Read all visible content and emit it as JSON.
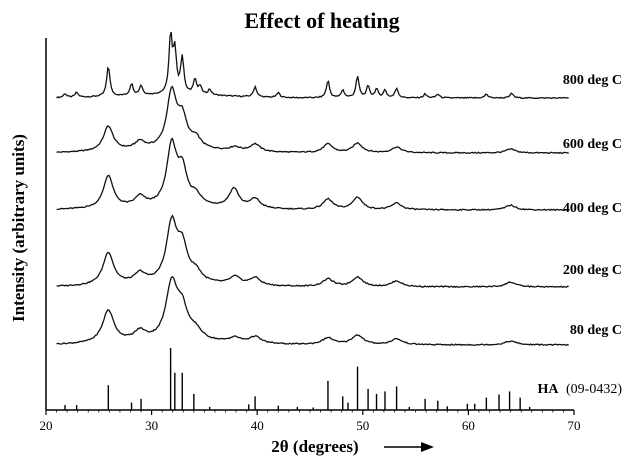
{
  "chart_data": {
    "type": "line",
    "title": "Effect of heating",
    "xlabel": "2θ (degrees)",
    "ylabel": "Intensity (arbitrary units)",
    "xlim": [
      20,
      70
    ],
    "xticks": [
      20,
      30,
      40,
      50,
      60,
      70
    ],
    "grid": false,
    "legend": "inline-right",
    "series": [
      {
        "name": "800 deg C",
        "peaks": [
          [
            21.8,
            0.04
          ],
          [
            22.9,
            0.05
          ],
          [
            25.9,
            0.32
          ],
          [
            28.1,
            0.12
          ],
          [
            29.0,
            0.1
          ],
          [
            31.8,
            0.6
          ],
          [
            32.2,
            0.44
          ],
          [
            32.9,
            0.38
          ],
          [
            34.1,
            0.16
          ],
          [
            34.6,
            0.08
          ],
          [
            35.5,
            0.06
          ],
          [
            39.8,
            0.11
          ],
          [
            42.0,
            0.05
          ],
          [
            46.7,
            0.18
          ],
          [
            48.1,
            0.08
          ],
          [
            49.5,
            0.22
          ],
          [
            50.5,
            0.12
          ],
          [
            51.3,
            0.09
          ],
          [
            52.1,
            0.08
          ],
          [
            53.2,
            0.1
          ],
          [
            55.9,
            0.04
          ],
          [
            57.1,
            0.04
          ],
          [
            61.7,
            0.04
          ],
          [
            64.1,
            0.05
          ]
        ],
        "peak_width": 0.18
      },
      {
        "name": "600 deg C",
        "peaks": [
          [
            25.9,
            0.26
          ],
          [
            28.9,
            0.08
          ],
          [
            31.9,
            0.58
          ],
          [
            32.9,
            0.3
          ],
          [
            34.2,
            0.1
          ],
          [
            37.9,
            0.04
          ],
          [
            39.8,
            0.08
          ],
          [
            46.7,
            0.09
          ],
          [
            49.5,
            0.1
          ],
          [
            53.2,
            0.06
          ],
          [
            64.0,
            0.04
          ]
        ],
        "peak_width": 0.55
      },
      {
        "name": "400 deg C",
        "peaks": [
          [
            25.9,
            0.34
          ],
          [
            28.9,
            0.1
          ],
          [
            31.9,
            0.62
          ],
          [
            32.9,
            0.35
          ],
          [
            34.2,
            0.1
          ],
          [
            37.8,
            0.2
          ],
          [
            39.8,
            0.1
          ],
          [
            46.7,
            0.11
          ],
          [
            49.5,
            0.13
          ],
          [
            53.2,
            0.07
          ],
          [
            64.0,
            0.05
          ]
        ],
        "peak_width": 0.55
      },
      {
        "name": "200 deg C",
        "peaks": [
          [
            25.9,
            0.34
          ],
          [
            28.9,
            0.1
          ],
          [
            31.9,
            0.6
          ],
          [
            32.9,
            0.35
          ],
          [
            34.2,
            0.1
          ],
          [
            37.9,
            0.08
          ],
          [
            39.8,
            0.08
          ],
          [
            46.7,
            0.08
          ],
          [
            49.5,
            0.1
          ],
          [
            53.2,
            0.06
          ],
          [
            64.0,
            0.05
          ]
        ],
        "peak_width": 0.6
      },
      {
        "name": "80 deg C",
        "peaks": [
          [
            25.9,
            0.34
          ],
          [
            28.9,
            0.1
          ],
          [
            31.9,
            0.58
          ],
          [
            32.9,
            0.3
          ],
          [
            34.2,
            0.09
          ],
          [
            37.9,
            0.05
          ],
          [
            39.8,
            0.07
          ],
          [
            46.7,
            0.07
          ],
          [
            49.5,
            0.1
          ],
          [
            53.2,
            0.06
          ],
          [
            64.0,
            0.04
          ]
        ],
        "peak_width": 0.65
      }
    ],
    "reference": {
      "name": "HA",
      "card": "(09-0432)",
      "lines": [
        [
          21.8,
          0.08
        ],
        [
          22.9,
          0.08
        ],
        [
          25.9,
          0.4
        ],
        [
          28.1,
          0.12
        ],
        [
          29.0,
          0.18
        ],
        [
          31.8,
          1.0
        ],
        [
          32.2,
          0.6
        ],
        [
          32.9,
          0.6
        ],
        [
          34.0,
          0.26
        ],
        [
          35.5,
          0.05
        ],
        [
          39.2,
          0.09
        ],
        [
          39.8,
          0.22
        ],
        [
          42.0,
          0.07
        ],
        [
          43.8,
          0.05
        ],
        [
          45.3,
          0.04
        ],
        [
          46.7,
          0.47
        ],
        [
          48.1,
          0.22
        ],
        [
          48.6,
          0.12
        ],
        [
          49.5,
          0.7
        ],
        [
          50.5,
          0.34
        ],
        [
          51.3,
          0.26
        ],
        [
          52.1,
          0.3
        ],
        [
          53.2,
          0.38
        ],
        [
          54.4,
          0.05
        ],
        [
          55.9,
          0.18
        ],
        [
          57.1,
          0.15
        ],
        [
          58.0,
          0.06
        ],
        [
          59.9,
          0.1
        ],
        [
          60.6,
          0.1
        ],
        [
          61.7,
          0.2
        ],
        [
          62.9,
          0.25
        ],
        [
          63.9,
          0.3
        ],
        [
          64.9,
          0.2
        ],
        [
          65.8,
          0.05
        ]
      ]
    }
  }
}
